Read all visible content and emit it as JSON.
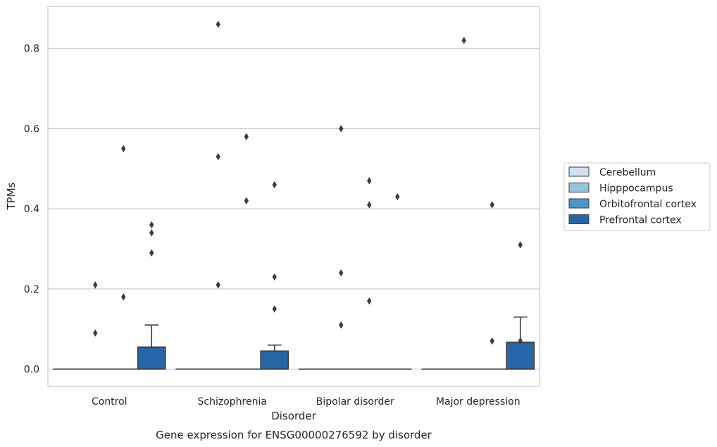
{
  "chart_data": {
    "type": "box",
    "xlabel": "Disorder",
    "ylabel": "TPMs",
    "caption": "Gene expression for ENSG00000276592 by disorder",
    "ylim": [
      -0.043,
      0.905
    ],
    "yticks": [
      "0.0",
      "0.2",
      "0.4",
      "0.6",
      "0.8"
    ],
    "ytick_values": [
      0.0,
      0.2,
      0.4,
      0.6,
      0.8
    ],
    "grid": "horizontal",
    "legend_position": "right",
    "categories": [
      "Control",
      "Schizophrenia",
      "Bipolar disorder",
      "Major depression"
    ],
    "series": [
      {
        "name": "Cerebellum",
        "color": "#cfe1f2",
        "boxes": [
          {
            "min": 0,
            "q1": 0,
            "median": 0,
            "q3": 0,
            "max": 0,
            "outliers": []
          },
          {
            "min": 0,
            "q1": 0,
            "median": 0,
            "q3": 0,
            "max": 0,
            "outliers": []
          },
          {
            "min": 0,
            "q1": 0,
            "median": 0,
            "q3": 0,
            "max": 0,
            "outliers": []
          },
          {
            "min": 0,
            "q1": 0,
            "median": 0,
            "q3": 0,
            "max": 0,
            "outliers": []
          }
        ]
      },
      {
        "name": "Hipppocampus",
        "color": "#93c4de",
        "boxes": [
          {
            "min": 0,
            "q1": 0,
            "median": 0,
            "q3": 0,
            "max": 0,
            "outliers": [
              0.21,
              0.09
            ]
          },
          {
            "min": 0,
            "q1": 0,
            "median": 0,
            "q3": 0,
            "max": 0,
            "outliers": [
              0.86,
              0.53,
              0.21
            ]
          },
          {
            "min": 0,
            "q1": 0,
            "median": 0,
            "q3": 0,
            "max": 0,
            "outliers": [
              0.6,
              0.24,
              0.11
            ]
          },
          {
            "min": 0,
            "q1": 0,
            "median": 0,
            "q3": 0,
            "max": 0,
            "outliers": [
              0.82
            ]
          }
        ]
      },
      {
        "name": "Orbitofrontal cortex",
        "color": "#4a98c9",
        "boxes": [
          {
            "min": 0,
            "q1": 0,
            "median": 0,
            "q3": 0,
            "max": 0,
            "outliers": [
              0.55,
              0.18
            ]
          },
          {
            "min": 0,
            "q1": 0,
            "median": 0,
            "q3": 0,
            "max": 0,
            "outliers": [
              0.58,
              0.42
            ]
          },
          {
            "min": 0,
            "q1": 0,
            "median": 0,
            "q3": 0,
            "max": 0,
            "outliers": [
              0.47,
              0.41,
              0.17
            ]
          },
          {
            "min": 0,
            "q1": 0,
            "median": 0,
            "q3": 0,
            "max": 0,
            "outliers": [
              0.41,
              0.07
            ]
          }
        ]
      },
      {
        "name": "Prefrontal cortex",
        "color": "#2666a8",
        "boxes": [
          {
            "min": 0,
            "q1": 0,
            "median": 0,
            "q3": 0.055,
            "max": 0.11,
            "outliers": [
              0.36,
              0.34,
              0.29
            ]
          },
          {
            "min": 0,
            "q1": 0,
            "median": 0,
            "q3": 0.045,
            "max": 0.06,
            "outliers": [
              0.46,
              0.23,
              0.15
            ]
          },
          {
            "min": 0,
            "q1": 0,
            "median": 0,
            "q3": 0,
            "max": 0,
            "outliers": [
              0.43
            ]
          },
          {
            "min": 0,
            "q1": 0,
            "median": 0,
            "q3": 0.067,
            "max": 0.13,
            "outliers": [
              0.31,
              0.07
            ]
          }
        ]
      }
    ]
  }
}
